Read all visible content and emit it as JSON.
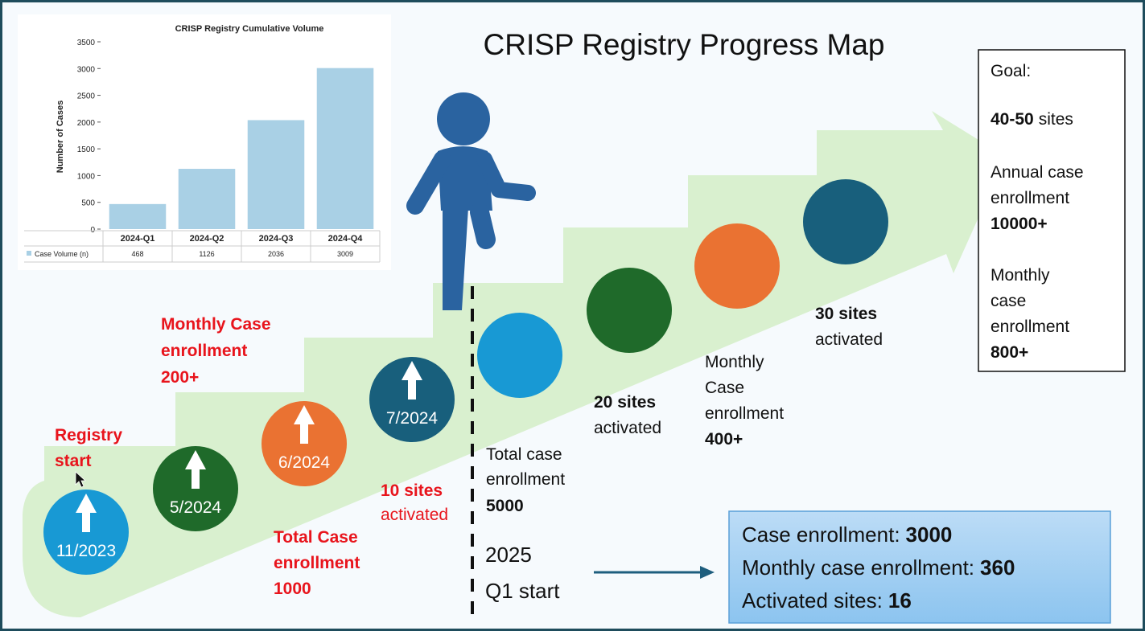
{
  "title": "CRISP Registry Progress Map",
  "chart_data": {
    "type": "bar",
    "title": "CRISP Registry Cumulative Volume",
    "y_label": "Number of Cases",
    "categories": [
      "2024-Q1",
      "2024-Q2",
      "2024-Q3",
      "2024-Q4"
    ],
    "series": [
      {
        "name": "Case Volume (n)",
        "color": "#a9d0e5",
        "values": [
          468,
          1126,
          2036,
          3009
        ]
      }
    ],
    "ylim": [
      0,
      3500
    ],
    "yticks": [
      0,
      500,
      1000,
      1500,
      2000,
      2500,
      3000,
      3500
    ],
    "grid": false
  },
  "milestones": [
    "11/2023",
    "5/2024",
    "6/2024",
    "7/2024"
  ],
  "annotations": {
    "registry_start": [
      "Registry",
      "start"
    ],
    "monthly_200": [
      "Monthly Case",
      "enrollment",
      "200+"
    ],
    "total_1000": [
      "Total Case",
      "enrollment",
      "1000"
    ],
    "sites_10": [
      "10 sites",
      "activated"
    ],
    "total_5000": [
      "Total case",
      "enrollment",
      "5000"
    ],
    "q1_2025": [
      "2025",
      "Q1 start"
    ],
    "sites_20": [
      "20 sites",
      "activated"
    ],
    "monthly_400": [
      "Monthly",
      "Case",
      "enrollment",
      "400+"
    ],
    "sites_30": [
      "30 sites",
      "activated"
    ]
  },
  "goal": {
    "heading": "Goal:",
    "sites": [
      "40-50",
      "sites"
    ],
    "annual": [
      "Annual case",
      "enrollment",
      "10000+"
    ],
    "monthly": [
      "Monthly",
      "case",
      "enrollment",
      "800+"
    ]
  },
  "summary": [
    {
      "label": "Case enrollment:",
      "value": 3000
    },
    {
      "label": "Monthly case enrollment:",
      "value": 360
    },
    {
      "label": "Activated sites:",
      "value": 16
    }
  ]
}
